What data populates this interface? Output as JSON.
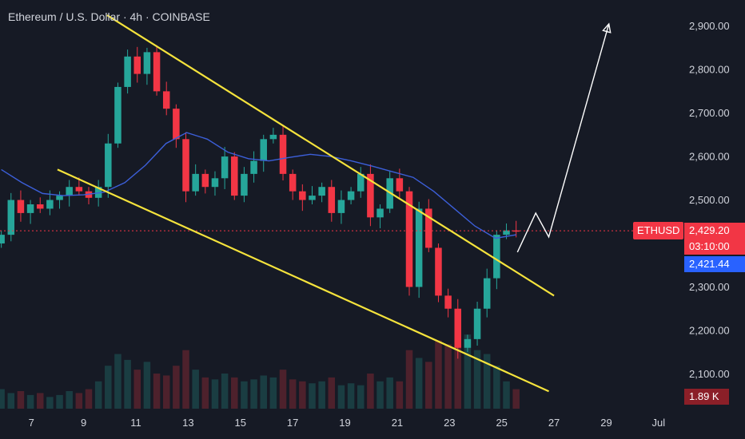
{
  "header": {
    "title": "Ethereum / U.S. Dollar · 4h · COINBASE"
  },
  "colors": {
    "background": "#161a25",
    "up": "#26a69a",
    "down": "#f23645",
    "ma": "#3c5fd9",
    "channel": "#f5e33c",
    "projection": "#ffffff",
    "axis_text": "#d1d4dc"
  },
  "chart_data": {
    "type": "candlestick",
    "symbol": "ETHUSD",
    "last_price_label": "2,429.20",
    "countdown_label": "03:10:00",
    "ma_value_label": "2,421.44",
    "volume_label": "1.89 K",
    "x_tick_labels": [
      "7",
      "9",
      "11",
      "13",
      "15",
      "17",
      "19",
      "21",
      "23",
      "25",
      "27",
      "29",
      "Jul"
    ],
    "y_tick_labels": [
      "2,900.00",
      "2,800.00",
      "2,700.00",
      "2,600.00",
      "2,500.00",
      "2,300.00",
      "2,200.00",
      "2,100.00"
    ],
    "y_ticks": [
      2900,
      2800,
      2700,
      2600,
      2500,
      2300,
      2200,
      2100
    ],
    "ylim": [
      2020,
      2960
    ],
    "xlim_days": [
      5.8,
      31.8
    ],
    "last_price": 2429.2,
    "ma_value": 2421.44,
    "closes": [
      2420,
      2500,
      2470,
      2490,
      2480,
      2500,
      2510,
      2530,
      2520,
      2505,
      2530,
      2630,
      2760,
      2830,
      2790,
      2840,
      2750,
      2710,
      2640,
      2520,
      2560,
      2530,
      2550,
      2600,
      2510,
      2560,
      2590,
      2640,
      2650,
      2560,
      2520,
      2500,
      2510,
      2530,
      2470,
      2500,
      2520,
      2560,
      2460,
      2480,
      2550,
      2520,
      2300,
      2480,
      2390,
      2280,
      2250,
      2160,
      2180,
      2250,
      2320,
      2420,
      2430,
      2429
    ],
    "volumes": [
      10,
      8,
      9,
      7,
      8,
      6,
      7,
      9,
      8,
      10,
      14,
      22,
      28,
      25,
      20,
      24,
      18,
      17,
      22,
      30,
      20,
      16,
      15,
      18,
      16,
      14,
      15,
      17,
      16,
      20,
      15,
      14,
      13,
      14,
      16,
      12,
      13,
      12,
      18,
      14,
      16,
      14,
      30,
      26,
      24,
      35,
      33,
      45,
      38,
      30,
      28,
      22,
      14,
      10
    ],
    "moving_average": [
      2570,
      2540,
      2515,
      2510,
      2512,
      2518,
      2540,
      2580,
      2630,
      2655,
      2640,
      2610,
      2595,
      2590,
      2598,
      2605,
      2600,
      2590,
      2578,
      2565,
      2552,
      2520,
      2480,
      2440,
      2412,
      2420
    ],
    "channel": {
      "upper": {
        "from": [
          9.9,
          2925
        ],
        "to": [
          27.0,
          2280
        ]
      },
      "lower": {
        "from": [
          8.0,
          2570
        ],
        "to": [
          26.8,
          2060
        ]
      }
    },
    "projection_path": [
      [
        25.6,
        2380
      ],
      [
        26.3,
        2470
      ],
      [
        26.8,
        2415
      ],
      [
        29.1,
        2905
      ]
    ],
    "grid": false
  }
}
